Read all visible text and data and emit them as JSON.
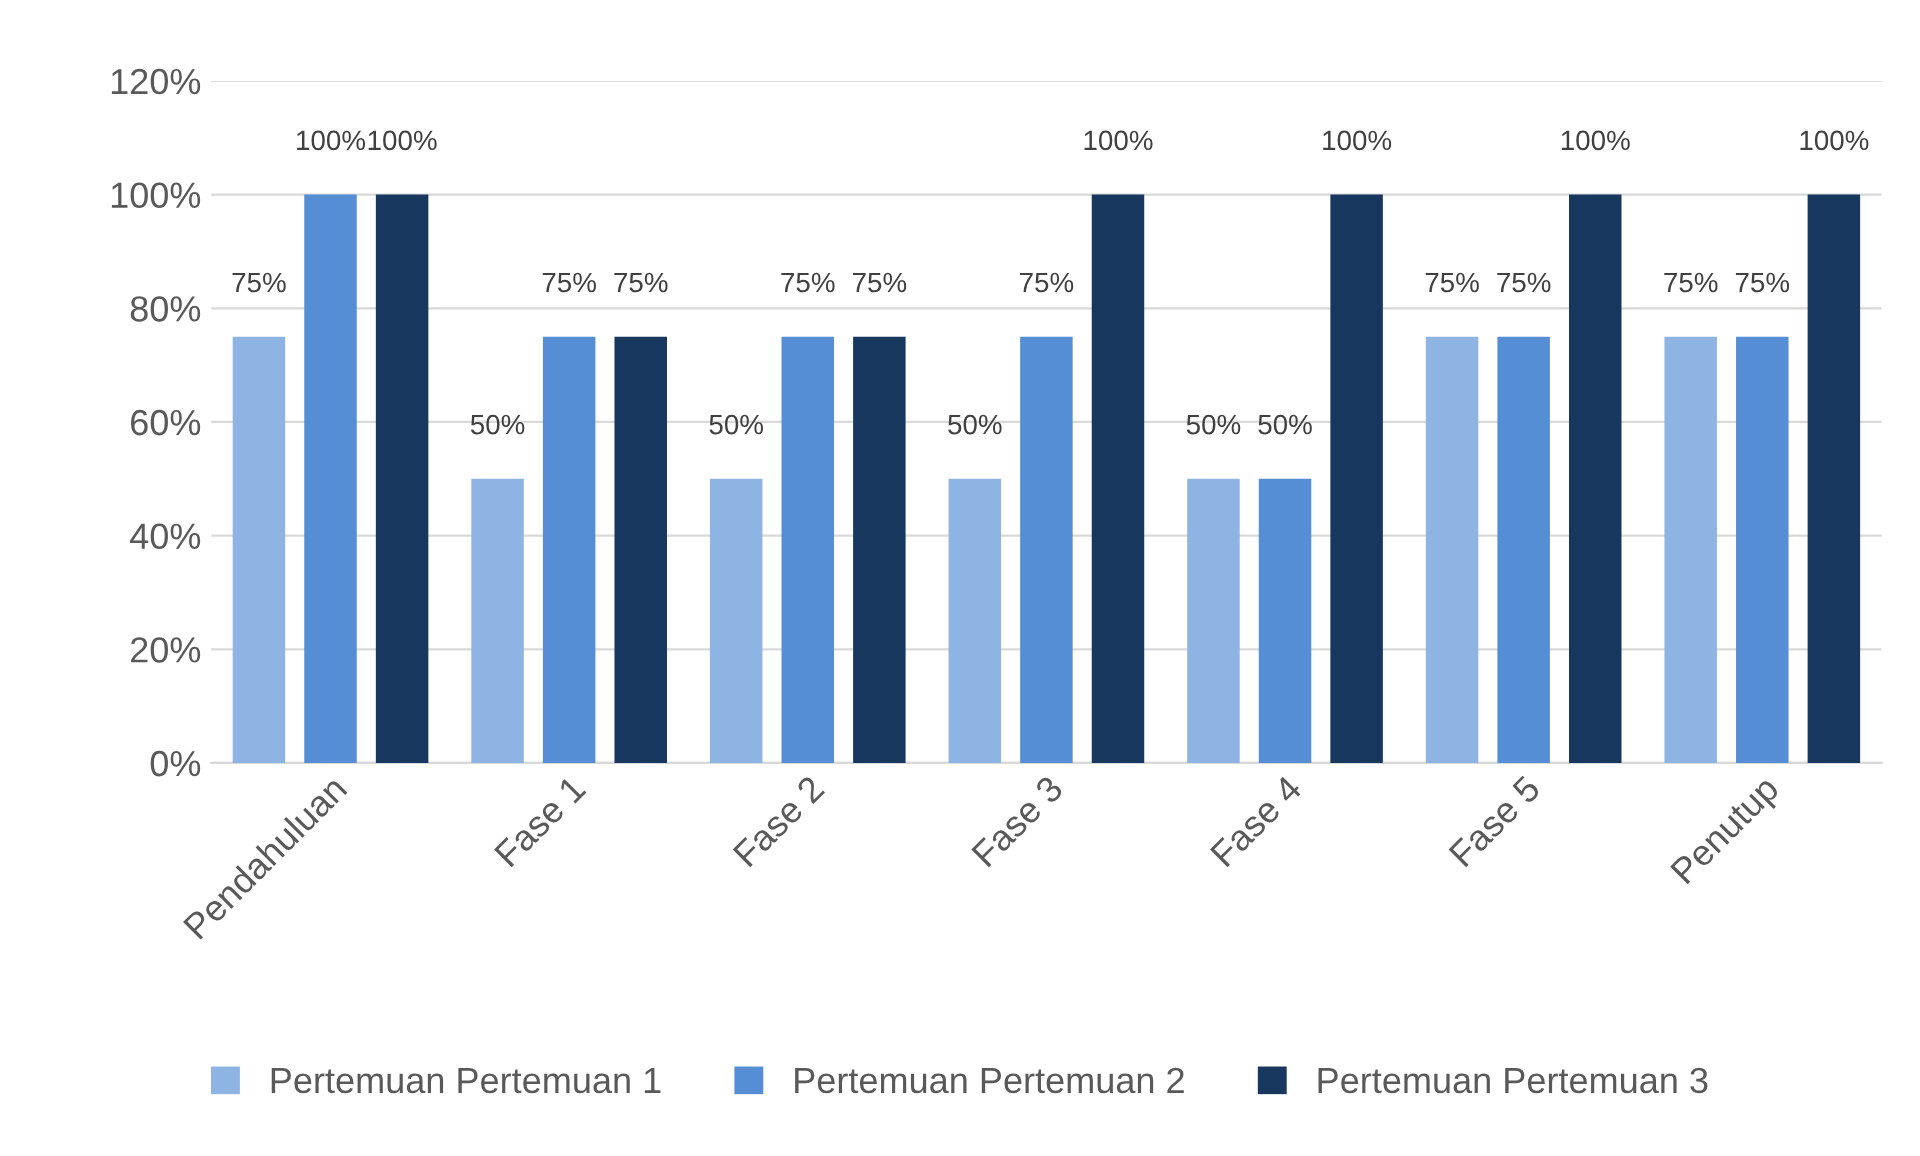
{
  "chart_data": {
    "type": "bar",
    "categories": [
      "Pendahuluan",
      "Fase 1",
      "Fase 2",
      "Fase 3",
      "Fase 4",
      "Fase 5",
      "Penutup"
    ],
    "series": [
      {
        "name": "Pertemuan Pertemuan 1",
        "color": "#8eb4e3",
        "values": [
          75,
          50,
          50,
          50,
          50,
          75,
          75
        ],
        "value_labels": [
          "75%",
          "50%",
          "50%",
          "50%",
          "50%",
          "75%",
          "75%"
        ]
      },
      {
        "name": "Pertemuan Pertemuan 2",
        "color": "#558ed5",
        "values": [
          100,
          75,
          75,
          75,
          50,
          75,
          75
        ],
        "value_labels": [
          "100%",
          "75%",
          "75%",
          "75%",
          "50%",
          "75%",
          "75%"
        ]
      },
      {
        "name": "Pertemuan Pertemuan 3",
        "color": "#17375e",
        "values": [
          100,
          75,
          75,
          100,
          100,
          100,
          100
        ],
        "value_labels": [
          "100%",
          "75%",
          "75%",
          "100%",
          "100%",
          "100%",
          "100%"
        ]
      }
    ],
    "ylim": [
      0,
      120
    ],
    "yticks": [
      {
        "value": 0,
        "label": "0%"
      },
      {
        "value": 20,
        "label": "20%"
      },
      {
        "value": 40,
        "label": "40%"
      },
      {
        "value": 60,
        "label": "60%"
      },
      {
        "value": 80,
        "label": "80%"
      },
      {
        "value": 100,
        "label": "100%"
      },
      {
        "value": 120,
        "label": "120%"
      }
    ],
    "grid": "y",
    "legend": "bottom"
  }
}
